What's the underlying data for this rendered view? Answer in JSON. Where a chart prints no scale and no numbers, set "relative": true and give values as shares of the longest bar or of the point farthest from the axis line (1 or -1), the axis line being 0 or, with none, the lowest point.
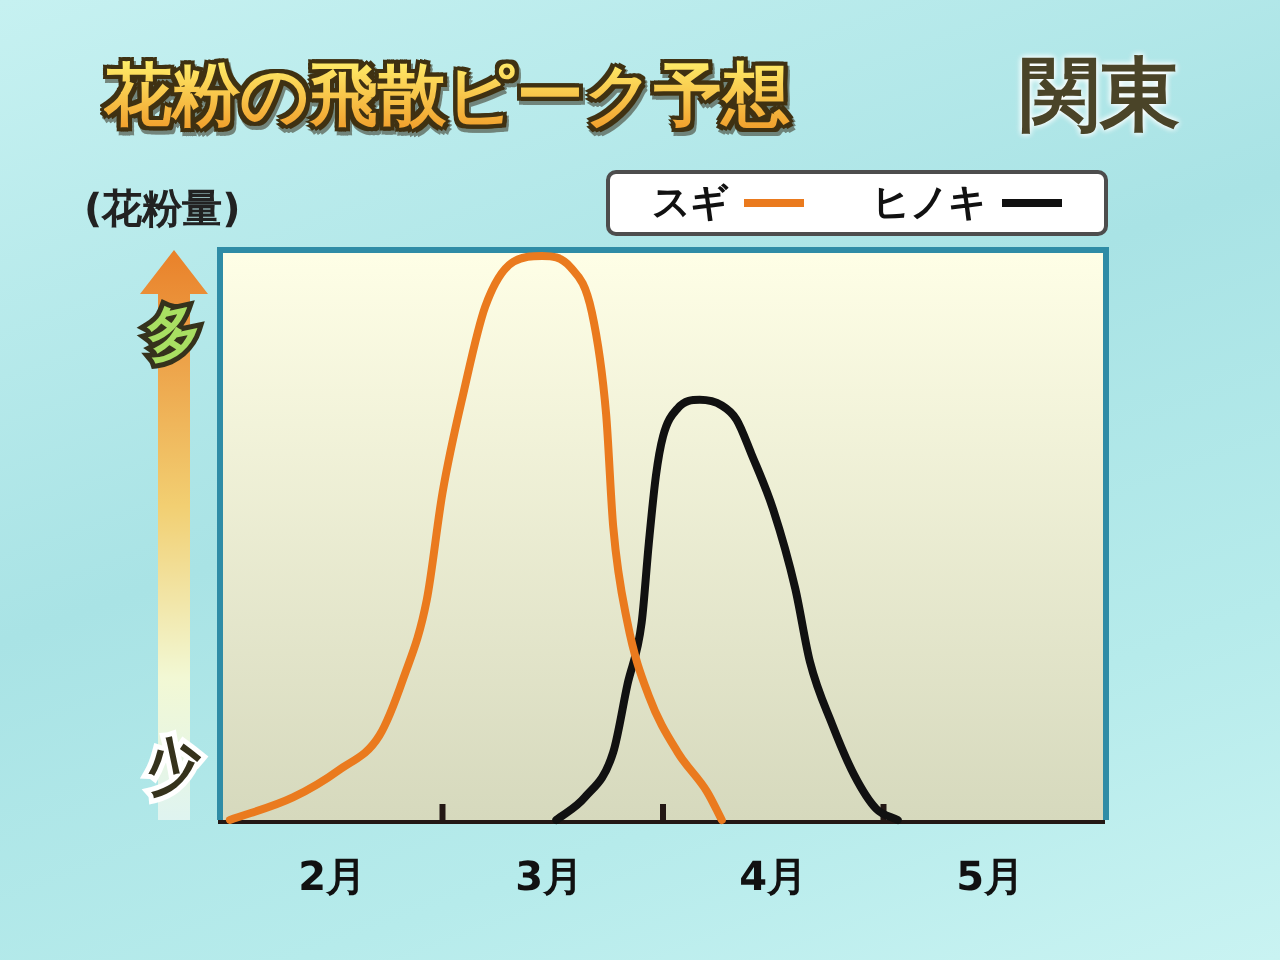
{
  "chart_data": {
    "type": "line",
    "title": "花粉の飛散ピーク予想",
    "subtitle": "関東",
    "ylabel": "(花粉量)",
    "annotations": [
      "多",
      "少"
    ],
    "relative": true,
    "legend": "top right",
    "marker": "none",
    "line_style": "solid",
    "xlim": [
      "--02-01",
      "--06-01"
    ],
    "xticks": [
      {
        "value": "--03-01",
        "label": null
      },
      {
        "value": "--04-01",
        "label": null
      },
      {
        "value": "--05-01",
        "label": null
      },
      {
        "value": "--02-15",
        "label": "2月"
      },
      {
        "value": "--03-16",
        "label": "3月"
      },
      {
        "value": "--04-16",
        "label": "4月"
      },
      {
        "value": "--05-16",
        "label": "5月"
      }
    ],
    "series": [
      {
        "name": "スギ",
        "color": "#ea7a1e",
        "x": [
          "--02-02",
          "--02-10",
          "--02-16",
          "--02-21",
          "--02-24",
          "--02-27",
          "--03-01",
          "--03-04",
          "--03-07",
          "--03-11",
          "--03-15",
          "--03-19",
          "--03-22",
          "--03-24",
          "--03-25",
          "--03-27",
          "--03-30",
          "--04-03",
          "--04-07",
          "--04-09"
        ],
        "values": [
          0,
          0.04,
          0.09,
          0.15,
          0.25,
          0.39,
          0.58,
          0.76,
          0.91,
          0.99,
          1,
          0.98,
          0.9,
          0.72,
          0.52,
          0.35,
          0.22,
          0.12,
          0.05,
          0
        ]
      },
      {
        "name": "ヒノキ",
        "color": "#111111",
        "x": [
          "--03-17",
          "--03-21",
          "--03-25",
          "--03-27",
          "--03-29",
          "--03-30",
          "--03-31",
          "--04-01",
          "--04-03",
          "--04-06",
          "--04-09",
          "--04-11",
          "--04-13",
          "--04-16",
          "--04-19",
          "--04-21",
          "--04-24",
          "--04-27",
          "--04-30",
          "--05-03"
        ],
        "values": [
          0,
          0.04,
          0.12,
          0.24,
          0.35,
          0.49,
          0.61,
          0.68,
          0.73,
          0.745,
          0.735,
          0.71,
          0.65,
          0.55,
          0.41,
          0.28,
          0.17,
          0.08,
          0.02,
          0
        ]
      }
    ]
  }
}
